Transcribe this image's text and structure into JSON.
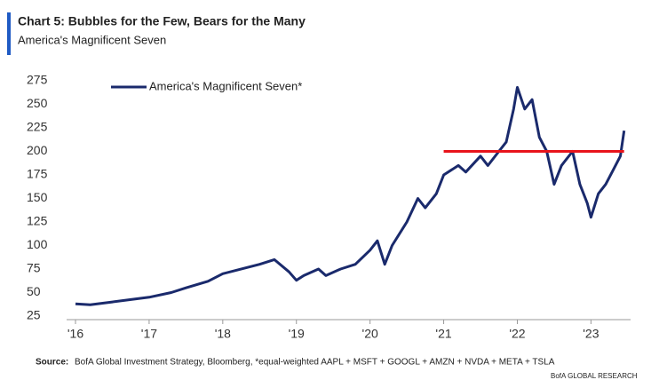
{
  "chart_data": {
    "type": "line",
    "title": "Chart 5: Bubbles for the Few, Bears for the Many",
    "subtitle": "America's Magnificent Seven",
    "source_label": "Source:",
    "source": "BofA Global Investment Strategy, Bloomberg, *equal-weighted AAPL + MSFT + GOOGL + AMZN + NVDA + META + TSLA",
    "credit": "BofA GLOBAL RESEARCH",
    "x": [
      2016.0,
      2016.2,
      2016.5,
      2016.8,
      2017.0,
      2017.3,
      2017.5,
      2017.8,
      2018.0,
      2018.2,
      2018.5,
      2018.7,
      2018.9,
      2019.0,
      2019.1,
      2019.3,
      2019.4,
      2019.6,
      2019.8,
      2020.0,
      2020.1,
      2020.2,
      2020.3,
      2020.5,
      2020.65,
      2020.75,
      2020.9,
      2021.0,
      2021.2,
      2021.3,
      2021.5,
      2021.6,
      2021.75,
      2021.85,
      2021.95,
      2022.0,
      2022.1,
      2022.2,
      2022.3,
      2022.4,
      2022.5,
      2022.6,
      2022.75,
      2022.85,
      2022.95,
      2023.0,
      2023.1,
      2023.2,
      2023.3,
      2023.4,
      2023.45
    ],
    "series": [
      {
        "name": "America's Magnificent Seven*",
        "color": "#1a2a6c",
        "values": [
          38,
          37,
          40,
          43,
          45,
          50,
          55,
          62,
          70,
          74,
          80,
          85,
          72,
          63,
          68,
          75,
          68,
          75,
          80,
          95,
          105,
          80,
          100,
          125,
          150,
          140,
          155,
          175,
          185,
          178,
          195,
          185,
          200,
          210,
          245,
          268,
          245,
          255,
          215,
          200,
          165,
          185,
          200,
          165,
          145,
          130,
          155,
          165,
          180,
          195,
          222
        ]
      }
    ],
    "hline": {
      "y": 200,
      "x": [
        2021.0,
        2023.45
      ],
      "color": "#e8141b"
    },
    "xlim": [
      2016.0,
      2023.9
    ],
    "xticks": [
      {
        "value": 2016,
        "label": "'16"
      },
      {
        "value": 2017,
        "label": "'17"
      },
      {
        "value": 2018,
        "label": "'18"
      },
      {
        "value": 2019,
        "label": "'19"
      },
      {
        "value": 2020,
        "label": "'20"
      },
      {
        "value": 2021,
        "label": "'21"
      },
      {
        "value": 2022,
        "label": "'22"
      },
      {
        "value": 2023,
        "label": "'23"
      }
    ],
    "ylim": [
      25,
      275
    ],
    "yticks": [
      25,
      50,
      75,
      100,
      125,
      150,
      175,
      200,
      225,
      250,
      275
    ],
    "legend": "top-left"
  }
}
